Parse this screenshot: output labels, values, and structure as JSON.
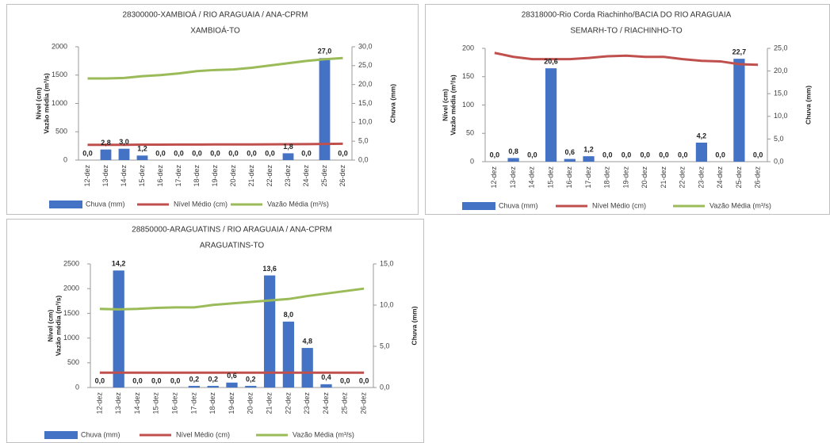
{
  "chart_data": [
    {
      "type": "bar-line",
      "title": "28300000-XAMBIOÁ / RIO ARAGUAIA  / ANA-CPRM",
      "subtitle": "XAMBIOÁ-TO",
      "ylabel": [
        "Nível (cm)",
        "Vazão média (m³/s)"
      ],
      "y2label": "Chuva (mm)",
      "categories": [
        "12-dez",
        "13-dez",
        "14-dez",
        "15-dez",
        "16-dez",
        "17-dez",
        "18-dez",
        "19-dez",
        "20-dez",
        "21-dez",
        "22-dez",
        "23-dez",
        "24-dez",
        "25-dez",
        "26-dez"
      ],
      "ylim": [
        0,
        2000
      ],
      "yticks": [
        0,
        500,
        1000,
        1500,
        2000
      ],
      "y2lim": [
        0,
        30
      ],
      "y2ticks": [
        {
          "value": 0,
          "label": "0,0"
        },
        {
          "value": 5,
          "label": "5,0"
        },
        {
          "value": 10,
          "label": "10,0"
        },
        {
          "value": 15,
          "label": "15,0"
        },
        {
          "value": 20,
          "label": "20,0"
        },
        {
          "value": 25,
          "label": "25,0"
        },
        {
          "value": 30,
          "label": "30,0"
        }
      ],
      "series": [
        {
          "name": "Chuva (mm)",
          "color": "#4472c4",
          "axis": "y2",
          "values": [
            0,
            2.8,
            3.0,
            1.2,
            0,
            0,
            0,
            0,
            0,
            0,
            0,
            1.8,
            0,
            27.0,
            0
          ],
          "value_labels": [
            "0,0",
            "2,8",
            "3,0",
            "1,2",
            "0,0",
            "0,0",
            "0,0",
            "0,0",
            "0,0",
            "0,0",
            "0,0",
            "1,8",
            "0,0",
            "27,0",
            "0,0"
          ]
        },
        {
          "name": "Nível Médio (cm)",
          "color": "#c0504d",
          "values": [
            270,
            270,
            270,
            272,
            272,
            274,
            275,
            276,
            276,
            277,
            278,
            280,
            282,
            285,
            288
          ]
        },
        {
          "name": "Vazão Média (m³/s)",
          "color": "#9bbb59",
          "values": [
            1440,
            1440,
            1450,
            1480,
            1500,
            1530,
            1570,
            1590,
            1600,
            1630,
            1670,
            1710,
            1750,
            1780,
            1800
          ]
        }
      ]
    },
    {
      "type": "bar-line",
      "title": "28318000-Rio Corda Riachinho/BACIA DO RIO ARAGUAIA",
      "subtitle": "SEMARH-TO  / RIACHINHO-TO",
      "ylabel": [
        "Nível (cm)",
        "Vazão média (m³/s)"
      ],
      "y2label": "Chuva (mm)",
      "categories": [
        "12-dez",
        "13-dez",
        "14-dez",
        "15-dez",
        "16-dez",
        "17-dez",
        "18-dez",
        "19-dez",
        "20-dez",
        "21-dez",
        "22-dez",
        "23-dez",
        "24-dez",
        "25-dez",
        "26-dez"
      ],
      "ylim": [
        0,
        200
      ],
      "yticks": [
        0,
        50,
        100,
        150,
        200
      ],
      "y2lim": [
        0,
        25
      ],
      "y2ticks": [
        {
          "value": 0,
          "label": "0,0"
        },
        {
          "value": 5,
          "label": "5,0"
        },
        {
          "value": 10,
          "label": "10,0"
        },
        {
          "value": 15,
          "label": "15,0"
        },
        {
          "value": 20,
          "label": "20,0"
        },
        {
          "value": 25,
          "label": "25,0"
        }
      ],
      "series": [
        {
          "name": "Chuva (mm)",
          "color": "#4472c4",
          "axis": "y2",
          "values": [
            0,
            0.8,
            0,
            20.6,
            0.6,
            1.2,
            0,
            0,
            0,
            0,
            0,
            4.2,
            0,
            22.7,
            0
          ],
          "value_labels": [
            "0,0",
            "0,8",
            "0,0",
            "20,6",
            "0,6",
            "1,2",
            "0,0",
            "0,0",
            "0,0",
            "0,0",
            "0,0",
            "4,2",
            "0,0",
            "22,7",
            "0,0"
          ]
        },
        {
          "name": "Nível Médio (cm)",
          "color": "#c0504d",
          "values": [
            192,
            185,
            181,
            181,
            181,
            183,
            186,
            187,
            185,
            185,
            181,
            178,
            177,
            172,
            171
          ]
        },
        {
          "name": "Vazão Média (m³/s)",
          "color": "#9bbb59",
          "values": [
            null,
            null,
            null,
            null,
            null,
            null,
            null,
            null,
            null,
            null,
            null,
            null,
            null,
            null,
            null
          ]
        }
      ]
    },
    {
      "type": "bar-line",
      "title": "28850000-ARAGUATINS / RIO ARAGUAIA  / ANA-CPRM",
      "subtitle": "ARAGUATINS-TO",
      "ylabel": [
        "Nível (cm)",
        "Vazão média (m³/s)"
      ],
      "y2label": "Chuva (mm)",
      "categories": [
        "12-dez",
        "13-dez",
        "14-dez",
        "15-dez",
        "16-dez",
        "17-dez",
        "18-dez",
        "19-dez",
        "20-dez",
        "21-dez",
        "22-dez",
        "23-dez",
        "24-dez",
        "25-dez",
        "26-dez"
      ],
      "ylim": [
        0,
        2500
      ],
      "yticks": [
        0,
        500,
        1000,
        1500,
        2000,
        2500
      ],
      "y2lim": [
        0,
        15
      ],
      "y2ticks": [
        {
          "value": 0,
          "label": "0,0"
        },
        {
          "value": 5,
          "label": "5,0"
        },
        {
          "value": 10,
          "label": "10,0"
        },
        {
          "value": 15,
          "label": "15,0"
        }
      ],
      "series": [
        {
          "name": "Chuva (mm)",
          "color": "#4472c4",
          "axis": "y2",
          "values": [
            0,
            14.2,
            0,
            0,
            0,
            0.2,
            0.2,
            0.6,
            0.2,
            13.6,
            8.0,
            4.8,
            0.4,
            0,
            0
          ],
          "value_labels": [
            "0,0",
            "14,2",
            "0,0",
            "0,0",
            "0,0",
            "0,2",
            "0,2",
            "0,6",
            "0,2",
            "13,6",
            "8,0",
            "4,8",
            "0,4",
            "0,0",
            "0,0"
          ]
        },
        {
          "name": "Nível Médio (cm)",
          "color": "#c0504d",
          "values": [
            300,
            300,
            300,
            300,
            300,
            300,
            300,
            300,
            300,
            300,
            300,
            300,
            300,
            300,
            300
          ]
        },
        {
          "name": "Vazão Média (m³/s)",
          "color": "#9bbb59",
          "values": [
            1590,
            1580,
            1590,
            1610,
            1620,
            1620,
            1670,
            1700,
            1730,
            1760,
            1790,
            1850,
            1900,
            1950,
            2000
          ]
        }
      ]
    }
  ]
}
